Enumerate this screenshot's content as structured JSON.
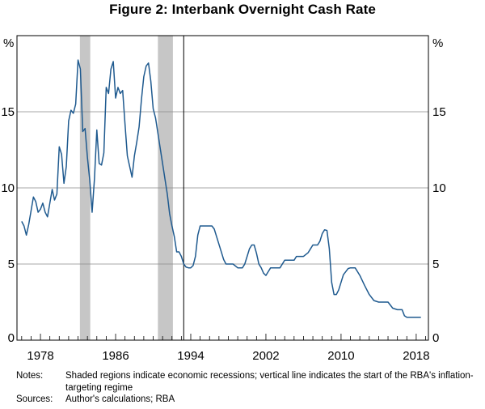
{
  "chart_data": {
    "type": "line",
    "title": "Figure 2: Interbank Overnight Cash Rate",
    "unit_left": "%",
    "unit_right": "%",
    "xlim": [
      1975.5,
      2019.3
    ],
    "ylim": [
      0,
      20
    ],
    "yticks": [
      0,
      5,
      10,
      15
    ],
    "xticks": [
      1978,
      1986,
      1994,
      2002,
      2010,
      2018
    ],
    "grid": true,
    "recessions": [
      {
        "start": 1982.2,
        "end": 1983.3
      },
      {
        "start": 1990.5,
        "end": 1992.1
      }
    ],
    "inflation_targeting_start": 1993.25,
    "series": [
      {
        "name": "Interbank overnight cash rate",
        "color": "#1f5a8f",
        "points": [
          [
            1976.0,
            7.8
          ],
          [
            1976.25,
            7.5
          ],
          [
            1976.5,
            6.9
          ],
          [
            1976.75,
            7.6
          ],
          [
            1977.0,
            8.5
          ],
          [
            1977.25,
            9.4
          ],
          [
            1977.5,
            9.1
          ],
          [
            1977.75,
            8.4
          ],
          [
            1978.0,
            8.6
          ],
          [
            1978.25,
            9.0
          ],
          [
            1978.5,
            8.4
          ],
          [
            1978.75,
            8.1
          ],
          [
            1979.0,
            9.0
          ],
          [
            1979.25,
            9.9
          ],
          [
            1979.5,
            9.2
          ],
          [
            1979.75,
            9.6
          ],
          [
            1980.0,
            12.7
          ],
          [
            1980.25,
            12.2
          ],
          [
            1980.5,
            10.3
          ],
          [
            1980.75,
            11.4
          ],
          [
            1981.0,
            14.4
          ],
          [
            1981.25,
            15.1
          ],
          [
            1981.5,
            14.9
          ],
          [
            1981.75,
            15.5
          ],
          [
            1982.0,
            18.4
          ],
          [
            1982.25,
            17.8
          ],
          [
            1982.5,
            13.7
          ],
          [
            1982.75,
            13.9
          ],
          [
            1983.0,
            12.0
          ],
          [
            1983.25,
            10.5
          ],
          [
            1983.5,
            8.4
          ],
          [
            1983.75,
            10.6
          ],
          [
            1984.0,
            13.8
          ],
          [
            1984.25,
            11.6
          ],
          [
            1984.5,
            11.5
          ],
          [
            1984.75,
            12.3
          ],
          [
            1985.0,
            16.6
          ],
          [
            1985.25,
            16.2
          ],
          [
            1985.5,
            17.8
          ],
          [
            1985.75,
            18.3
          ],
          [
            1986.0,
            15.9
          ],
          [
            1986.25,
            16.6
          ],
          [
            1986.5,
            16.2
          ],
          [
            1986.75,
            16.4
          ],
          [
            1987.0,
            14.2
          ],
          [
            1987.25,
            12.1
          ],
          [
            1987.5,
            11.4
          ],
          [
            1987.75,
            10.7
          ],
          [
            1988.0,
            12.1
          ],
          [
            1988.25,
            13.0
          ],
          [
            1988.5,
            14.0
          ],
          [
            1988.75,
            15.8
          ],
          [
            1989.0,
            17.3
          ],
          [
            1989.25,
            18.0
          ],
          [
            1989.5,
            18.2
          ],
          [
            1989.75,
            17.0
          ],
          [
            1990.0,
            15.2
          ],
          [
            1990.25,
            14.6
          ],
          [
            1990.5,
            13.6
          ],
          [
            1990.75,
            12.6
          ],
          [
            1991.0,
            11.6
          ],
          [
            1991.25,
            10.6
          ],
          [
            1991.5,
            9.6
          ],
          [
            1991.75,
            8.3
          ],
          [
            1992.0,
            7.5
          ],
          [
            1992.25,
            6.8
          ],
          [
            1992.5,
            5.8
          ],
          [
            1992.75,
            5.8
          ],
          [
            1993.0,
            5.5
          ],
          [
            1993.25,
            5.0
          ],
          [
            1993.5,
            4.8
          ],
          [
            1993.75,
            4.75
          ],
          [
            1994.0,
            4.75
          ],
          [
            1994.25,
            4.9
          ],
          [
            1994.5,
            5.5
          ],
          [
            1994.75,
            6.9
          ],
          [
            1995.0,
            7.5
          ],
          [
            1995.5,
            7.5
          ],
          [
            1996.0,
            7.5
          ],
          [
            1996.25,
            7.5
          ],
          [
            1996.5,
            7.3
          ],
          [
            1996.75,
            6.8
          ],
          [
            1997.0,
            6.3
          ],
          [
            1997.25,
            5.8
          ],
          [
            1997.5,
            5.3
          ],
          [
            1997.75,
            5.0
          ],
          [
            1998.0,
            5.0
          ],
          [
            1998.5,
            5.0
          ],
          [
            1999.0,
            4.75
          ],
          [
            1999.5,
            4.75
          ],
          [
            1999.75,
            5.0
          ],
          [
            2000.0,
            5.5
          ],
          [
            2000.25,
            6.0
          ],
          [
            2000.5,
            6.25
          ],
          [
            2000.75,
            6.25
          ],
          [
            2001.0,
            5.7
          ],
          [
            2001.25,
            5.0
          ],
          [
            2001.5,
            4.75
          ],
          [
            2001.75,
            4.4
          ],
          [
            2002.0,
            4.25
          ],
          [
            2002.25,
            4.5
          ],
          [
            2002.5,
            4.75
          ],
          [
            2003.0,
            4.75
          ],
          [
            2003.5,
            4.75
          ],
          [
            2003.75,
            5.0
          ],
          [
            2004.0,
            5.25
          ],
          [
            2005.0,
            5.25
          ],
          [
            2005.25,
            5.5
          ],
          [
            2006.0,
            5.5
          ],
          [
            2006.5,
            5.75
          ],
          [
            2006.75,
            6.0
          ],
          [
            2007.0,
            6.25
          ],
          [
            2007.5,
            6.25
          ],
          [
            2007.75,
            6.5
          ],
          [
            2008.0,
            7.0
          ],
          [
            2008.25,
            7.25
          ],
          [
            2008.5,
            7.2
          ],
          [
            2008.75,
            6.0
          ],
          [
            2009.0,
            3.8
          ],
          [
            2009.25,
            3.0
          ],
          [
            2009.5,
            3.0
          ],
          [
            2009.75,
            3.3
          ],
          [
            2010.0,
            3.8
          ],
          [
            2010.25,
            4.3
          ],
          [
            2010.5,
            4.5
          ],
          [
            2010.75,
            4.7
          ],
          [
            2011.0,
            4.75
          ],
          [
            2011.5,
            4.75
          ],
          [
            2011.75,
            4.5
          ],
          [
            2012.0,
            4.25
          ],
          [
            2012.5,
            3.6
          ],
          [
            2013.0,
            3.0
          ],
          [
            2013.5,
            2.6
          ],
          [
            2014.0,
            2.5
          ],
          [
            2015.0,
            2.5
          ],
          [
            2015.5,
            2.1
          ],
          [
            2016.0,
            2.0
          ],
          [
            2016.5,
            2.0
          ],
          [
            2016.75,
            1.6
          ],
          [
            2017.0,
            1.5
          ],
          [
            2018.5,
            1.5
          ]
        ]
      }
    ]
  },
  "notes": {
    "notes_label": "Notes:",
    "notes_text": "Shaded regions indicate economic recessions; vertical line indicates the start of the RBA's inflation-targeting regime",
    "sources_label": "Sources:",
    "sources_text": "Author's calculations; RBA"
  }
}
